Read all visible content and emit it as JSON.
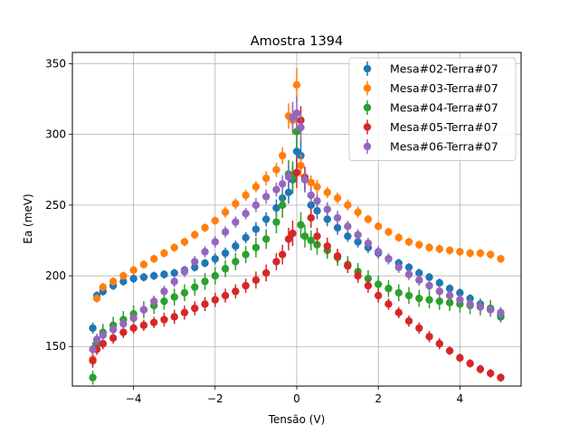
{
  "chart_data": {
    "type": "scatter",
    "title": "Amostra 1394",
    "xlabel": "Tensão (V)",
    "ylabel": "Ea (meV)",
    "xlim": [
      -5.5,
      5.5
    ],
    "ylim": [
      122,
      358
    ],
    "xticks": [
      -4,
      -2,
      0,
      2,
      4
    ],
    "yticks": [
      150,
      200,
      250,
      300,
      350
    ],
    "grid": true,
    "legend": "top-right",
    "x": [
      -5.0,
      -4.9,
      -4.75,
      -4.5,
      -4.25,
      -4.0,
      -3.75,
      -3.5,
      -3.25,
      -3.0,
      -2.75,
      -2.5,
      -2.25,
      -2.0,
      -1.75,
      -1.5,
      -1.25,
      -1.0,
      -0.75,
      -0.5,
      -0.35,
      -0.2,
      -0.1,
      0.0,
      0.1,
      0.2,
      0.35,
      0.5,
      0.75,
      1.0,
      1.25,
      1.5,
      1.75,
      2.0,
      2.25,
      2.5,
      2.75,
      3.0,
      3.25,
      3.5,
      3.75,
      4.0,
      4.25,
      4.5,
      4.75,
      5.0
    ],
    "series": [
      {
        "name": "Mesa#02-Terra#07",
        "color": "#1f77b4",
        "y": [
          163,
          186,
          189,
          193,
          196,
          198,
          199,
          200,
          201,
          202,
          204,
          206,
          209,
          212,
          216,
          221,
          227,
          233,
          240,
          248,
          255,
          259,
          268,
          288,
          285,
          268,
          250,
          246,
          240,
          234,
          228,
          224,
          220,
          216,
          212,
          209,
          206,
          202,
          199,
          195,
          191,
          188,
          184,
          180,
          176,
          171
        ],
        "yerr": [
          4,
          3,
          3,
          3,
          3,
          3,
          3,
          3,
          3,
          3,
          3,
          3,
          3,
          4,
          4,
          4,
          4,
          5,
          5,
          6,
          7,
          8,
          10,
          14,
          12,
          9,
          7,
          6,
          5,
          5,
          4,
          4,
          4,
          4,
          3,
          3,
          3,
          3,
          3,
          3,
          3,
          3,
          3,
          3,
          3,
          3
        ]
      },
      {
        "name": "Mesa#03-Terra#07",
        "color": "#ff7f0e",
        "y": [
          141,
          184,
          192,
          196,
          200,
          204,
          208,
          212,
          216,
          220,
          224,
          229,
          234,
          239,
          245,
          251,
          257,
          263,
          269,
          275,
          285,
          313,
          310,
          335,
          278,
          270,
          266,
          263,
          259,
          255,
          250,
          245,
          240,
          235,
          231,
          227,
          224,
          222,
          220,
          219,
          218,
          217,
          216,
          216,
          215,
          212
        ],
        "yerr": [
          5,
          3,
          3,
          3,
          3,
          3,
          3,
          3,
          3,
          3,
          3,
          3,
          3,
          3,
          4,
          4,
          4,
          4,
          5,
          5,
          6,
          9,
          10,
          12,
          8,
          6,
          5,
          5,
          4,
          4,
          4,
          4,
          3,
          3,
          3,
          3,
          3,
          3,
          3,
          3,
          3,
          3,
          3,
          3,
          3,
          3
        ]
      },
      {
        "name": "Mesa#04-Terra#07",
        "color": "#2ca02c",
        "y": [
          128,
          152,
          160,
          165,
          169,
          173,
          176,
          179,
          182,
          185,
          188,
          192,
          196,
          200,
          205,
          210,
          215,
          220,
          226,
          238,
          250,
          272,
          270,
          302,
          236,
          228,
          225,
          222,
          218,
          213,
          208,
          203,
          198,
          194,
          191,
          188,
          186,
          184,
          183,
          182,
          181,
          180,
          179,
          178,
          177,
          172
        ],
        "yerr": [
          5,
          6,
          6,
          6,
          6,
          6,
          6,
          6,
          6,
          6,
          6,
          6,
          6,
          6,
          6,
          6,
          6,
          7,
          7,
          8,
          9,
          10,
          11,
          12,
          9,
          8,
          7,
          7,
          6,
          6,
          6,
          6,
          6,
          6,
          6,
          6,
          6,
          6,
          6,
          6,
          6,
          6,
          6,
          6,
          6,
          5
        ]
      },
      {
        "name": "Mesa#05-Terra#07",
        "color": "#d62728",
        "y": [
          140,
          148,
          152,
          156,
          160,
          163,
          165,
          167,
          169,
          171,
          174,
          177,
          180,
          183,
          186,
          189,
          193,
          197,
          202,
          210,
          215,
          226,
          230,
          273,
          310,
          269,
          241,
          228,
          221,
          214,
          207,
          200,
          193,
          186,
          180,
          174,
          168,
          163,
          157,
          152,
          147,
          142,
          138,
          134,
          131,
          128
        ],
        "yerr": [
          5,
          4,
          4,
          4,
          4,
          4,
          4,
          4,
          5,
          5,
          5,
          5,
          5,
          5,
          5,
          5,
          5,
          6,
          6,
          6,
          7,
          8,
          9,
          11,
          10,
          8,
          7,
          6,
          6,
          5,
          5,
          5,
          5,
          5,
          4,
          4,
          4,
          4,
          4,
          4,
          3,
          3,
          3,
          3,
          3,
          3
        ]
      },
      {
        "name": "Mesa#06-Terra#07",
        "color": "#9467bd",
        "y": [
          148,
          155,
          158,
          162,
          166,
          170,
          176,
          182,
          189,
          196,
          203,
          210,
          217,
          224,
          231,
          238,
          244,
          250,
          256,
          261,
          265,
          270,
          312,
          315,
          305,
          268,
          257,
          253,
          247,
          241,
          235,
          229,
          223,
          217,
          212,
          206,
          201,
          197,
          193,
          189,
          186,
          183,
          180,
          178,
          176,
          174
        ],
        "yerr": [
          5,
          4,
          4,
          4,
          4,
          4,
          4,
          4,
          4,
          4,
          4,
          4,
          4,
          4,
          4,
          4,
          4,
          5,
          5,
          5,
          6,
          8,
          11,
          12,
          10,
          8,
          6,
          5,
          5,
          5,
          4,
          4,
          4,
          4,
          4,
          4,
          4,
          4,
          4,
          4,
          4,
          4,
          4,
          4,
          4,
          4
        ]
      }
    ]
  }
}
